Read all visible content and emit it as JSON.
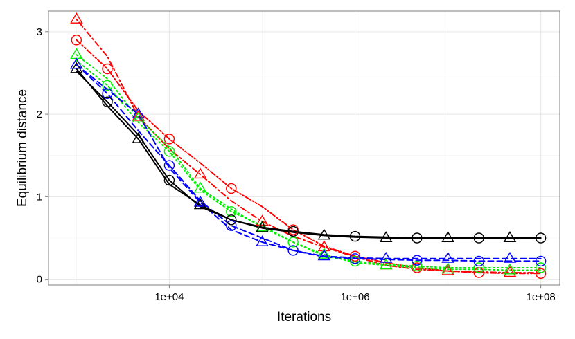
{
  "chart_data": {
    "type": "line",
    "xlabel": "Iterations",
    "ylabel": "Equilibrium distance",
    "x_scale": "log10",
    "xlim": [
      500,
      160000000
    ],
    "ylim": [
      -0.07,
      3.25
    ],
    "x_ticks": [
      10000,
      1000000,
      100000000
    ],
    "x_tick_labels": [
      "1e+04",
      "1e+06",
      "1e+08"
    ],
    "y_ticks": [
      0,
      1,
      2,
      3
    ],
    "y_tick_labels": [
      "0",
      "1",
      "2",
      "3"
    ],
    "grid": true,
    "legend": "none",
    "series": [
      {
        "color": "#ff0000",
        "dash": "dotdash",
        "marker": "triangle",
        "x": [
          1000,
          2154,
          4642,
          10000,
          21544,
          46416,
          100000,
          215443,
          464159,
          1000000,
          2154435,
          4641589,
          10000000,
          21544347,
          46415888,
          100000000
        ],
        "y": [
          3.15,
          2.7,
          1.97,
          1.58,
          1.27,
          0.95,
          0.7,
          0.52,
          0.39,
          0.27,
          0.17,
          0.12,
          0.1,
          0.09,
          0.08,
          0.08
        ]
      },
      {
        "color": "#ff0000",
        "dash": "dash-dot-dot",
        "marker": "circle",
        "x": [
          1000,
          2154,
          4642,
          10000,
          21544,
          46416,
          100000,
          215443,
          464159,
          1000000,
          2154435,
          4641589,
          10000000,
          21544347,
          46415888,
          100000000
        ],
        "y": [
          2.9,
          2.55,
          2.04,
          1.7,
          1.41,
          1.1,
          0.88,
          0.6,
          0.4,
          0.28,
          0.2,
          0.14,
          0.1,
          0.08,
          0.07,
          0.07
        ]
      },
      {
        "color": "#00ee00",
        "dash": "dotted",
        "marker": "triangle",
        "x": [
          1000,
          2154,
          4642,
          10000,
          21544,
          46416,
          100000,
          215443,
          464159,
          1000000,
          2154435,
          4641589,
          10000000,
          21544347,
          46415888,
          100000000
        ],
        "y": [
          2.72,
          2.43,
          1.95,
          1.6,
          1.1,
          0.85,
          0.63,
          0.45,
          0.3,
          0.2,
          0.17,
          0.14,
          0.12,
          0.12,
          0.11,
          0.11
        ]
      },
      {
        "color": "#00ee00",
        "dash": "dotted",
        "marker": "circle",
        "x": [
          1000,
          2154,
          4642,
          10000,
          21544,
          46416,
          100000,
          215443,
          464159,
          1000000,
          2154435,
          4641589,
          10000000,
          21544347,
          46415888,
          100000000
        ],
        "y": [
          2.65,
          2.35,
          1.9,
          1.55,
          1.08,
          0.82,
          0.65,
          0.45,
          0.28,
          0.22,
          0.18,
          0.16,
          0.14,
          0.14,
          0.14,
          0.14
        ]
      },
      {
        "color": "#0000ff",
        "dash": "dashed",
        "marker": "triangle",
        "x": [
          1000,
          2154,
          4642,
          10000,
          21544,
          46416,
          100000,
          215443,
          464159,
          1000000,
          2154435,
          4641589,
          10000000,
          21544347,
          46415888,
          100000000
        ],
        "y": [
          2.6,
          2.3,
          2.0,
          1.35,
          0.93,
          0.6,
          0.45,
          0.35,
          0.28,
          0.26,
          0.25,
          0.25,
          0.25,
          0.25,
          0.25,
          0.25
        ]
      },
      {
        "color": "#0000ff",
        "dash": "dashed",
        "marker": "circle",
        "x": [
          1000,
          2154,
          4642,
          10000,
          21544,
          46416,
          100000,
          215443,
          464159,
          1000000,
          2154435,
          4641589,
          10000000,
          21544347,
          46415888,
          100000000
        ],
        "y": [
          2.6,
          2.25,
          1.8,
          1.38,
          0.95,
          0.65,
          0.5,
          0.35,
          0.27,
          0.25,
          0.24,
          0.23,
          0.23,
          0.22,
          0.22,
          0.22
        ]
      },
      {
        "color": "#000000",
        "dash": "solid",
        "marker": "triangle",
        "x": [
          1000,
          2154,
          4642,
          10000,
          21544,
          46416,
          100000,
          215443,
          464159,
          1000000,
          2154435,
          4641589,
          10000000,
          21544347,
          46415888,
          100000000
        ],
        "y": [
          2.55,
          2.1,
          1.7,
          1.15,
          0.9,
          0.72,
          0.62,
          0.57,
          0.53,
          0.51,
          0.5,
          0.5,
          0.5,
          0.5,
          0.5,
          0.5
        ]
      },
      {
        "color": "#000000",
        "dash": "solid",
        "marker": "circle",
        "x": [
          1000,
          2154,
          4642,
          10000,
          21544,
          46416,
          100000,
          215443,
          464159,
          1000000,
          2154435,
          4641589,
          10000000,
          21544347,
          46415888,
          100000000
        ],
        "y": [
          2.52,
          2.15,
          1.75,
          1.2,
          0.88,
          0.72,
          0.63,
          0.58,
          0.54,
          0.52,
          0.51,
          0.5,
          0.5,
          0.5,
          0.5,
          0.5
        ]
      }
    ]
  }
}
